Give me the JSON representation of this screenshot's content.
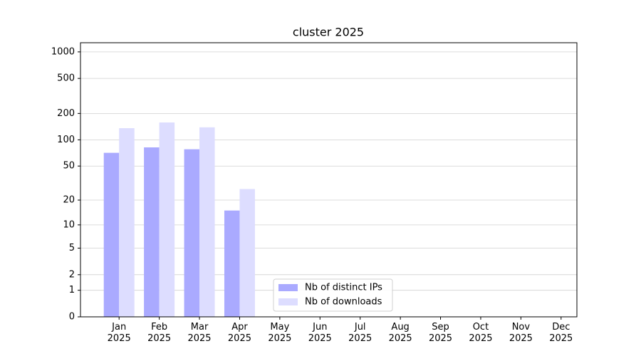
{
  "chart_data": {
    "type": "bar",
    "title": "cluster 2025",
    "scale": "log1p",
    "categories": [
      "Jan\n2025",
      "Feb\n2025",
      "Mar\n2025",
      "Apr\n2025",
      "May\n2025",
      "Jun\n2025",
      "Jul\n2025",
      "Aug\n2025",
      "Sep\n2025",
      "Oct\n2025",
      "Nov\n2025",
      "Dec\n2025"
    ],
    "series": [
      {
        "name": "Nb of distinct IPs",
        "color": "#aaaaff",
        "values": [
          71,
          82,
          78,
          15,
          0,
          0,
          0,
          0,
          0,
          0,
          0,
          0
        ]
      },
      {
        "name": "Nb of downloads",
        "color": "#ddddff",
        "values": [
          136,
          158,
          139,
          27,
          0,
          0,
          0,
          0,
          0,
          0,
          0,
          0
        ]
      }
    ],
    "ylim": [
      0,
      1270
    ],
    "yticks": [
      0,
      1,
      2,
      5,
      10,
      20,
      50,
      100,
      200,
      500,
      1000
    ],
    "grid": true,
    "legend": "lower center"
  }
}
